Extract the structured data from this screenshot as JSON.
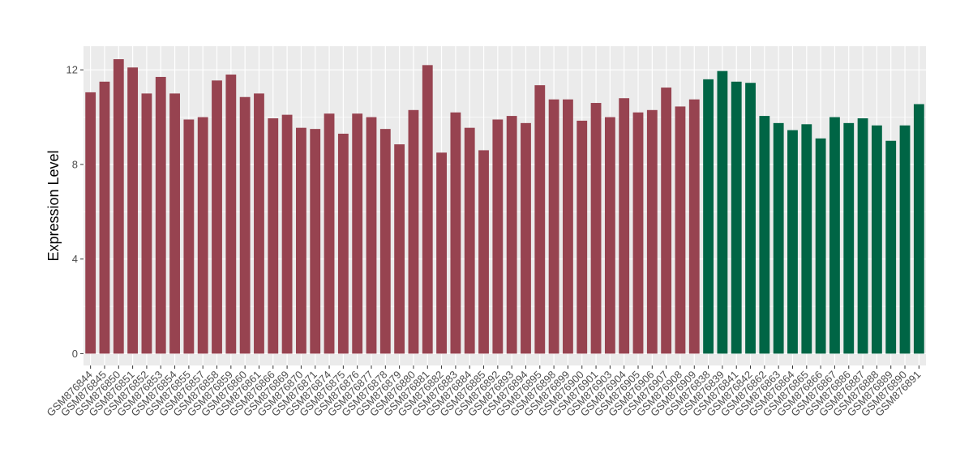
{
  "chart_data": {
    "type": "bar",
    "title": "",
    "xlabel": "",
    "ylabel": "Expression Level",
    "ylim": [
      -0.5,
      13.0
    ],
    "yticks": [
      0,
      4,
      8,
      12
    ],
    "grid": true,
    "legend": "none",
    "colors": {
      "group1": "#974350",
      "group2": "#006545",
      "panel": "#ebebeb",
      "grid": "#ffffff"
    },
    "categories": [
      "GSM876844",
      "GSM876845",
      "GSM876850",
      "GSM876851",
      "GSM876852",
      "GSM876853",
      "GSM876854",
      "GSM876855",
      "GSM876857",
      "GSM876858",
      "GSM876859",
      "GSM876860",
      "GSM876861",
      "GSM876866",
      "GSM876869",
      "GSM876870",
      "GSM876871",
      "GSM876874",
      "GSM876875",
      "GSM876876",
      "GSM876877",
      "GSM876878",
      "GSM876879",
      "GSM876880",
      "GSM876881",
      "GSM876882",
      "GSM876883",
      "GSM876884",
      "GSM876885",
      "GSM876892",
      "GSM876893",
      "GSM876894",
      "GSM876895",
      "GSM876898",
      "GSM876899",
      "GSM876900",
      "GSM876901",
      "GSM876903",
      "GSM876904",
      "GSM876905",
      "GSM876906",
      "GSM876907",
      "GSM876908",
      "GSM876909",
      "GSM876838",
      "GSM876839",
      "GSM876841",
      "GSM876842",
      "GSM876862",
      "GSM876863",
      "GSM876864",
      "GSM876865",
      "GSM876866",
      "GSM876867",
      "GSM876886",
      "GSM876887",
      "GSM876888",
      "GSM876889",
      "GSM876890",
      "GSM876891"
    ],
    "values": [
      11.05,
      11.5,
      12.45,
      12.1,
      11.0,
      11.7,
      11.0,
      9.9,
      10.0,
      11.55,
      11.8,
      10.85,
      11.0,
      9.95,
      10.1,
      9.55,
      9.5,
      10.15,
      9.3,
      10.15,
      10.0,
      9.5,
      8.85,
      10.3,
      12.2,
      8.5,
      10.2,
      9.55,
      8.6,
      9.9,
      10.05,
      9.75,
      11.35,
      10.75,
      10.75,
      9.85,
      10.6,
      10.0,
      10.8,
      10.2,
      10.3,
      11.25,
      10.45,
      10.75,
      11.6,
      11.95,
      11.5,
      11.45,
      10.05,
      9.75,
      9.45,
      9.7,
      9.1,
      10.0,
      9.75,
      9.95,
      9.65,
      9.0,
      9.65,
      10.55
    ],
    "groups": [
      "group1",
      "group1",
      "group1",
      "group1",
      "group1",
      "group1",
      "group1",
      "group1",
      "group1",
      "group1",
      "group1",
      "group1",
      "group1",
      "group1",
      "group1",
      "group1",
      "group1",
      "group1",
      "group1",
      "group1",
      "group1",
      "group1",
      "group1",
      "group1",
      "group1",
      "group1",
      "group1",
      "group1",
      "group1",
      "group1",
      "group1",
      "group1",
      "group1",
      "group1",
      "group1",
      "group1",
      "group1",
      "group1",
      "group1",
      "group1",
      "group1",
      "group1",
      "group1",
      "group1",
      "group2",
      "group2",
      "group2",
      "group2",
      "group2",
      "group2",
      "group2",
      "group2",
      "group2",
      "group2",
      "group2",
      "group2",
      "group2",
      "group2",
      "group2",
      "group2"
    ]
  }
}
